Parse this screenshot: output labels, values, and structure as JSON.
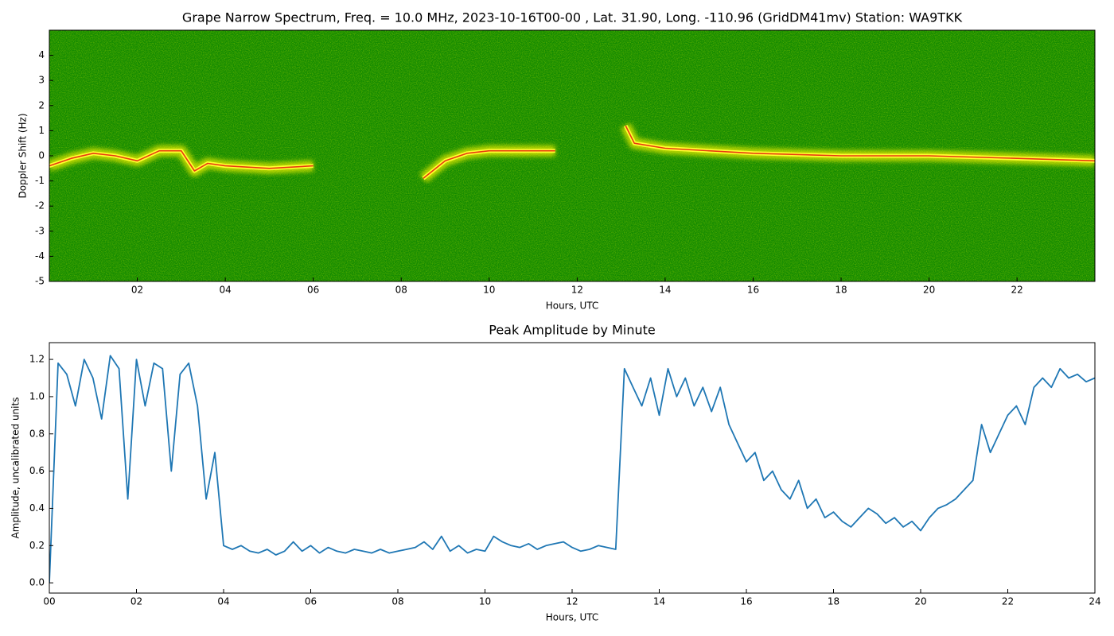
{
  "chart_data": [
    {
      "type": "spectrogram",
      "title": "Grape Narrow Spectrum, Freq. = 10.0 MHz, 2023-10-16T00-00 , Lat.  31.90, Long. -110.96 (GridDM41mv) Station: WA9TKK",
      "x_label": "Hours, UTC",
      "y_label": "Doppler Shift (Hz)",
      "x": [
        0,
        0.5,
        1,
        1.5,
        2,
        2.5,
        3,
        3.3,
        3.6,
        4,
        5,
        6,
        6.5,
        7.5,
        8.5,
        9,
        9.5,
        10,
        11,
        11.5,
        12.5,
        13.1,
        13.3,
        14,
        15,
        16,
        18,
        20,
        22,
        23.77
      ],
      "values": [
        -0.4,
        -0.1,
        0.1,
        0.0,
        -0.2,
        0.2,
        0.2,
        -0.6,
        -0.3,
        -0.4,
        -0.5,
        -0.4,
        null,
        null,
        -0.9,
        -0.2,
        0.1,
        0.2,
        0.2,
        0.2,
        null,
        1.2,
        0.5,
        0.3,
        0.2,
        0.1,
        0.0,
        0.0,
        -0.1,
        -0.2
      ],
      "color": "#e83a10",
      "background": "#138a00",
      "xlim": [
        0,
        23.77
      ],
      "ylim": [
        -5,
        5
      ],
      "xticks": [
        {
          "value": 2,
          "label": "02"
        },
        {
          "value": 4,
          "label": "04"
        },
        {
          "value": 6,
          "label": "06"
        },
        {
          "value": 8,
          "label": "08"
        },
        {
          "value": 10,
          "label": "10"
        },
        {
          "value": 12,
          "label": "12"
        },
        {
          "value": 14,
          "label": "14"
        },
        {
          "value": 16,
          "label": "16"
        },
        {
          "value": 18,
          "label": "18"
        },
        {
          "value": 20,
          "label": "20"
        },
        {
          "value": 22,
          "label": "22"
        }
      ],
      "yticks": [
        -5,
        -4,
        -3,
        -2,
        -1,
        0,
        1,
        2,
        3,
        4
      ]
    },
    {
      "type": "line",
      "title": "Peak Amplitude by Minute",
      "x_label": "Hours, UTC",
      "y_label": "Amplitude, uncalibrated units",
      "x": [
        0,
        0.2,
        0.4,
        0.6,
        0.8,
        1,
        1.2,
        1.4,
        1.6,
        1.8,
        2,
        2.2,
        2.4,
        2.6,
        2.8,
        3,
        3.2,
        3.4,
        3.6,
        3.8,
        4,
        4.2,
        4.4,
        4.6,
        4.8,
        5,
        5.2,
        5.4,
        5.6,
        5.8,
        6,
        6.2,
        6.4,
        6.6,
        6.8,
        7,
        7.2,
        7.4,
        7.6,
        7.8,
        8,
        8.2,
        8.4,
        8.6,
        8.8,
        9,
        9.2,
        9.4,
        9.6,
        9.8,
        10,
        10.2,
        10.4,
        10.6,
        10.8,
        11,
        11.2,
        11.4,
        11.6,
        11.8,
        12,
        12.2,
        12.4,
        12.6,
        12.8,
        13,
        13.2,
        13.4,
        13.6,
        13.8,
        14,
        14.2,
        14.4,
        14.6,
        14.8,
        15,
        15.2,
        15.4,
        15.6,
        15.8,
        16,
        16.2,
        16.4,
        16.6,
        16.8,
        17,
        17.2,
        17.4,
        17.6,
        17.8,
        18,
        18.2,
        18.4,
        18.6,
        18.8,
        19,
        19.2,
        19.4,
        19.6,
        19.8,
        20,
        20.2,
        20.4,
        20.6,
        20.8,
        21,
        21.2,
        21.4,
        21.6,
        21.8,
        22,
        22.2,
        22.4,
        22.6,
        22.8,
        23,
        23.2,
        23.4,
        23.6,
        23.8,
        24
      ],
      "values": [
        0.0,
        1.18,
        1.12,
        0.95,
        1.2,
        1.1,
        0.88,
        1.22,
        1.15,
        0.45,
        1.2,
        0.95,
        1.18,
        1.15,
        0.6,
        1.12,
        1.18,
        0.95,
        0.45,
        0.7,
        0.2,
        0.18,
        0.2,
        0.17,
        0.16,
        0.18,
        0.15,
        0.17,
        0.22,
        0.17,
        0.2,
        0.16,
        0.19,
        0.17,
        0.16,
        0.18,
        0.17,
        0.16,
        0.18,
        0.16,
        0.17,
        0.18,
        0.19,
        0.22,
        0.18,
        0.25,
        0.17,
        0.2,
        0.16,
        0.18,
        0.17,
        0.25,
        0.22,
        0.2,
        0.19,
        0.21,
        0.18,
        0.2,
        0.21,
        0.22,
        0.19,
        0.17,
        0.18,
        0.2,
        0.19,
        0.18,
        1.15,
        1.05,
        0.95,
        1.1,
        0.9,
        1.15,
        1.0,
        1.1,
        0.95,
        1.05,
        0.92,
        1.05,
        0.85,
        0.75,
        0.65,
        0.7,
        0.55,
        0.6,
        0.5,
        0.45,
        0.55,
        0.4,
        0.45,
        0.35,
        0.38,
        0.33,
        0.3,
        0.35,
        0.4,
        0.37,
        0.32,
        0.35,
        0.3,
        0.33,
        0.28,
        0.35,
        0.4,
        0.42,
        0.45,
        0.5,
        0.55,
        0.85,
        0.7,
        0.8,
        0.9,
        0.95,
        0.85,
        1.05,
        1.1,
        1.05,
        1.15,
        1.1,
        1.12,
        1.08,
        1.1
      ],
      "color": "#1f77b4",
      "xlim": [
        0,
        24
      ],
      "ylim": [
        -0.055,
        1.29
      ],
      "xticks": [
        {
          "value": 0,
          "label": "00"
        },
        {
          "value": 2,
          "label": "02"
        },
        {
          "value": 4,
          "label": "04"
        },
        {
          "value": 6,
          "label": "06"
        },
        {
          "value": 8,
          "label": "08"
        },
        {
          "value": 10,
          "label": "10"
        },
        {
          "value": 12,
          "label": "12"
        },
        {
          "value": 14,
          "label": "14"
        },
        {
          "value": 16,
          "label": "16"
        },
        {
          "value": 18,
          "label": "18"
        },
        {
          "value": 20,
          "label": "20"
        },
        {
          "value": 22,
          "label": "22"
        },
        {
          "value": 24,
          "label": "24"
        }
      ],
      "yticks": [
        {
          "value": 0,
          "label": "0.0"
        },
        0.2,
        0.4,
        0.6,
        0.8,
        {
          "value": 1,
          "label": "1.0"
        },
        1.2
      ]
    }
  ]
}
